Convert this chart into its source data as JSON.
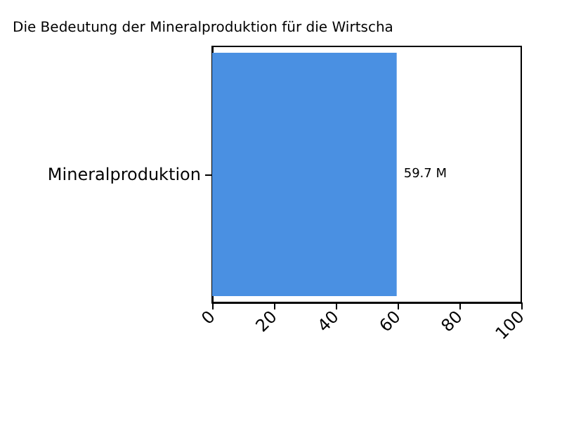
{
  "chart_data": {
    "type": "bar",
    "orientation": "horizontal",
    "title": "Die Bedeutung der Mineralproduktion für die Wirtscha",
    "categories": [
      "Mineralproduktion"
    ],
    "values": [
      59.7
    ],
    "value_labels": [
      "59.7 M"
    ],
    "color": "#4a90e2",
    "xlim": [
      0,
      100
    ],
    "xticks": [
      0,
      20,
      40,
      60,
      80,
      100
    ],
    "grid": false
  }
}
